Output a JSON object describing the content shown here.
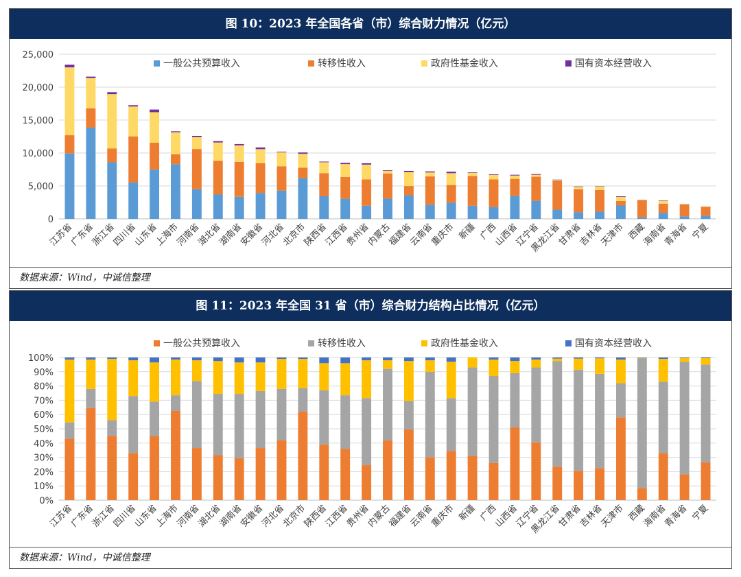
{
  "chart_data": [
    {
      "type": "bar",
      "stacked": true,
      "title": "图 10：2023 年全国各省（市）综合财力情况（亿元）",
      "source": "数据来源：Wind，中诚信整理",
      "ylim": [
        0,
        25000
      ],
      "yticks": [
        "0",
        "5,000",
        "10,000",
        "15,000",
        "20,000",
        "25,000"
      ],
      "grid": true,
      "legend_position": "top",
      "categories": [
        "江苏省",
        "广东省",
        "浙江省",
        "四川省",
        "山东省",
        "上海市",
        "河南省",
        "湖北省",
        "湖南省",
        "安徽省",
        "河北省",
        "北京市",
        "陕西省",
        "江西省",
        "贵州省",
        "内蒙古",
        "福建省",
        "云南省",
        "重庆市",
        "新疆",
        "广西",
        "山西省",
        "辽宁省",
        "黑龙江省",
        "甘肃省",
        "吉林省",
        "天津市",
        "西藏",
        "海南省",
        "青海省",
        "宁夏"
      ],
      "series": [
        {
          "name": "一般公共预算收入",
          "color": "#5b9bd5",
          "values": [
            9930,
            13850,
            8600,
            5530,
            7460,
            8310,
            4510,
            3700,
            3360,
            3940,
            4290,
            6180,
            3440,
            3060,
            2000,
            3080,
            3590,
            2150,
            2440,
            2000,
            1790,
            3480,
            2750,
            1400,
            1000,
            1100,
            2030,
            240,
            910,
            380,
            500
          ]
        },
        {
          "name": "转移性收入",
          "color": "#ed7d31",
          "values": [
            2770,
            2920,
            2100,
            6990,
            4100,
            1500,
            6100,
            5100,
            5300,
            4500,
            3700,
            1600,
            3500,
            3300,
            4000,
            3800,
            1400,
            4300,
            2700,
            4500,
            4200,
            2600,
            3650,
            4400,
            3500,
            3300,
            700,
            2600,
            1400,
            1800,
            1300
          ]
        },
        {
          "name": "政府性基金收入",
          "color": "#ffd966",
          "values": [
            10300,
            4600,
            8240,
            4540,
            4640,
            3340,
            1790,
            2800,
            2500,
            2150,
            2100,
            2100,
            1660,
            1960,
            2240,
            420,
            2100,
            600,
            1800,
            500,
            700,
            500,
            300,
            100,
            350,
            500,
            600,
            20,
            420,
            60,
            100
          ]
        },
        {
          "name": "国有资本经营收入",
          "color": "#7030a0",
          "values": [
            400,
            230,
            300,
            200,
            400,
            150,
            200,
            200,
            200,
            250,
            100,
            200,
            100,
            180,
            200,
            80,
            200,
            150,
            210,
            70,
            80,
            120,
            100,
            60,
            70,
            50,
            90,
            20,
            60,
            20,
            20
          ]
        }
      ]
    },
    {
      "type": "bar",
      "stacked": true,
      "percent": true,
      "title": "图 11：2023 年全国 31 省（市）综合财力结构占比情况（亿元）",
      "source": "数据来源：Wind，中诚信整理",
      "ylim": [
        0,
        100
      ],
      "yticks": [
        "0%",
        "10%",
        "20%",
        "30%",
        "40%",
        "50%",
        "60%",
        "70%",
        "80%",
        "90%",
        "100%"
      ],
      "grid": true,
      "legend_position": "top",
      "categories": [
        "江苏省",
        "广东省",
        "浙江省",
        "四川省",
        "山东省",
        "上海市",
        "河南省",
        "湖北省",
        "湖南省",
        "安徽省",
        "河北省",
        "北京市",
        "陕西省",
        "江西省",
        "贵州省",
        "内蒙古",
        "福建省",
        "云南省",
        "重庆市",
        "新疆",
        "广西",
        "山西省",
        "辽宁省",
        "黑龙江省",
        "甘肃省",
        "吉林省",
        "天津市",
        "西藏",
        "海南省",
        "青海省",
        "宁夏"
      ],
      "series": [
        {
          "name": "一般公共预算收入",
          "color": "#ed7d31",
          "values": [
            43,
            64.5,
            45,
            33,
            45,
            62.5,
            36.5,
            31.5,
            29.5,
            36.5,
            42,
            62,
            39,
            36,
            24.5,
            42,
            49.5,
            30,
            34.5,
            31,
            26,
            51,
            40.5,
            23.5,
            20.5,
            22.5,
            58,
            8.5,
            33,
            18,
            26.5
          ]
        },
        {
          "name": "转移性收入",
          "color": "#a5a5a5",
          "values": [
            11.5,
            13.5,
            11,
            40,
            24,
            11,
            47,
            43,
            45,
            40,
            36,
            16.5,
            38,
            37.5,
            47,
            50,
            20,
            60,
            37,
            62,
            61,
            38,
            52.5,
            74,
            71,
            66,
            24,
            91,
            50,
            79,
            68.5
          ]
        },
        {
          "name": "政府性基金收入",
          "color": "#ffc000",
          "values": [
            44,
            20.5,
            43,
            25,
            27.5,
            25,
            14.5,
            23,
            22,
            20,
            21,
            20.5,
            19,
            22.5,
            26.5,
            6,
            28,
            8,
            25.5,
            7,
            11.5,
            8.5,
            5.5,
            1.7,
            7.7,
            10.9,
            16.5,
            0.3,
            16,
            2.6,
            4.5
          ]
        },
        {
          "name": "国有资本经营收入",
          "color": "#4472c4",
          "values": [
            1.5,
            1.5,
            1,
            2,
            3.5,
            1.5,
            2,
            2.5,
            3.5,
            3.5,
            1,
            1,
            4,
            4,
            2,
            2,
            2.5,
            2,
            3,
            0,
            1.5,
            2.5,
            1.5,
            0.8,
            0.8,
            0.6,
            1.5,
            0.2,
            1,
            0.4,
            0.5
          ]
        }
      ]
    }
  ]
}
